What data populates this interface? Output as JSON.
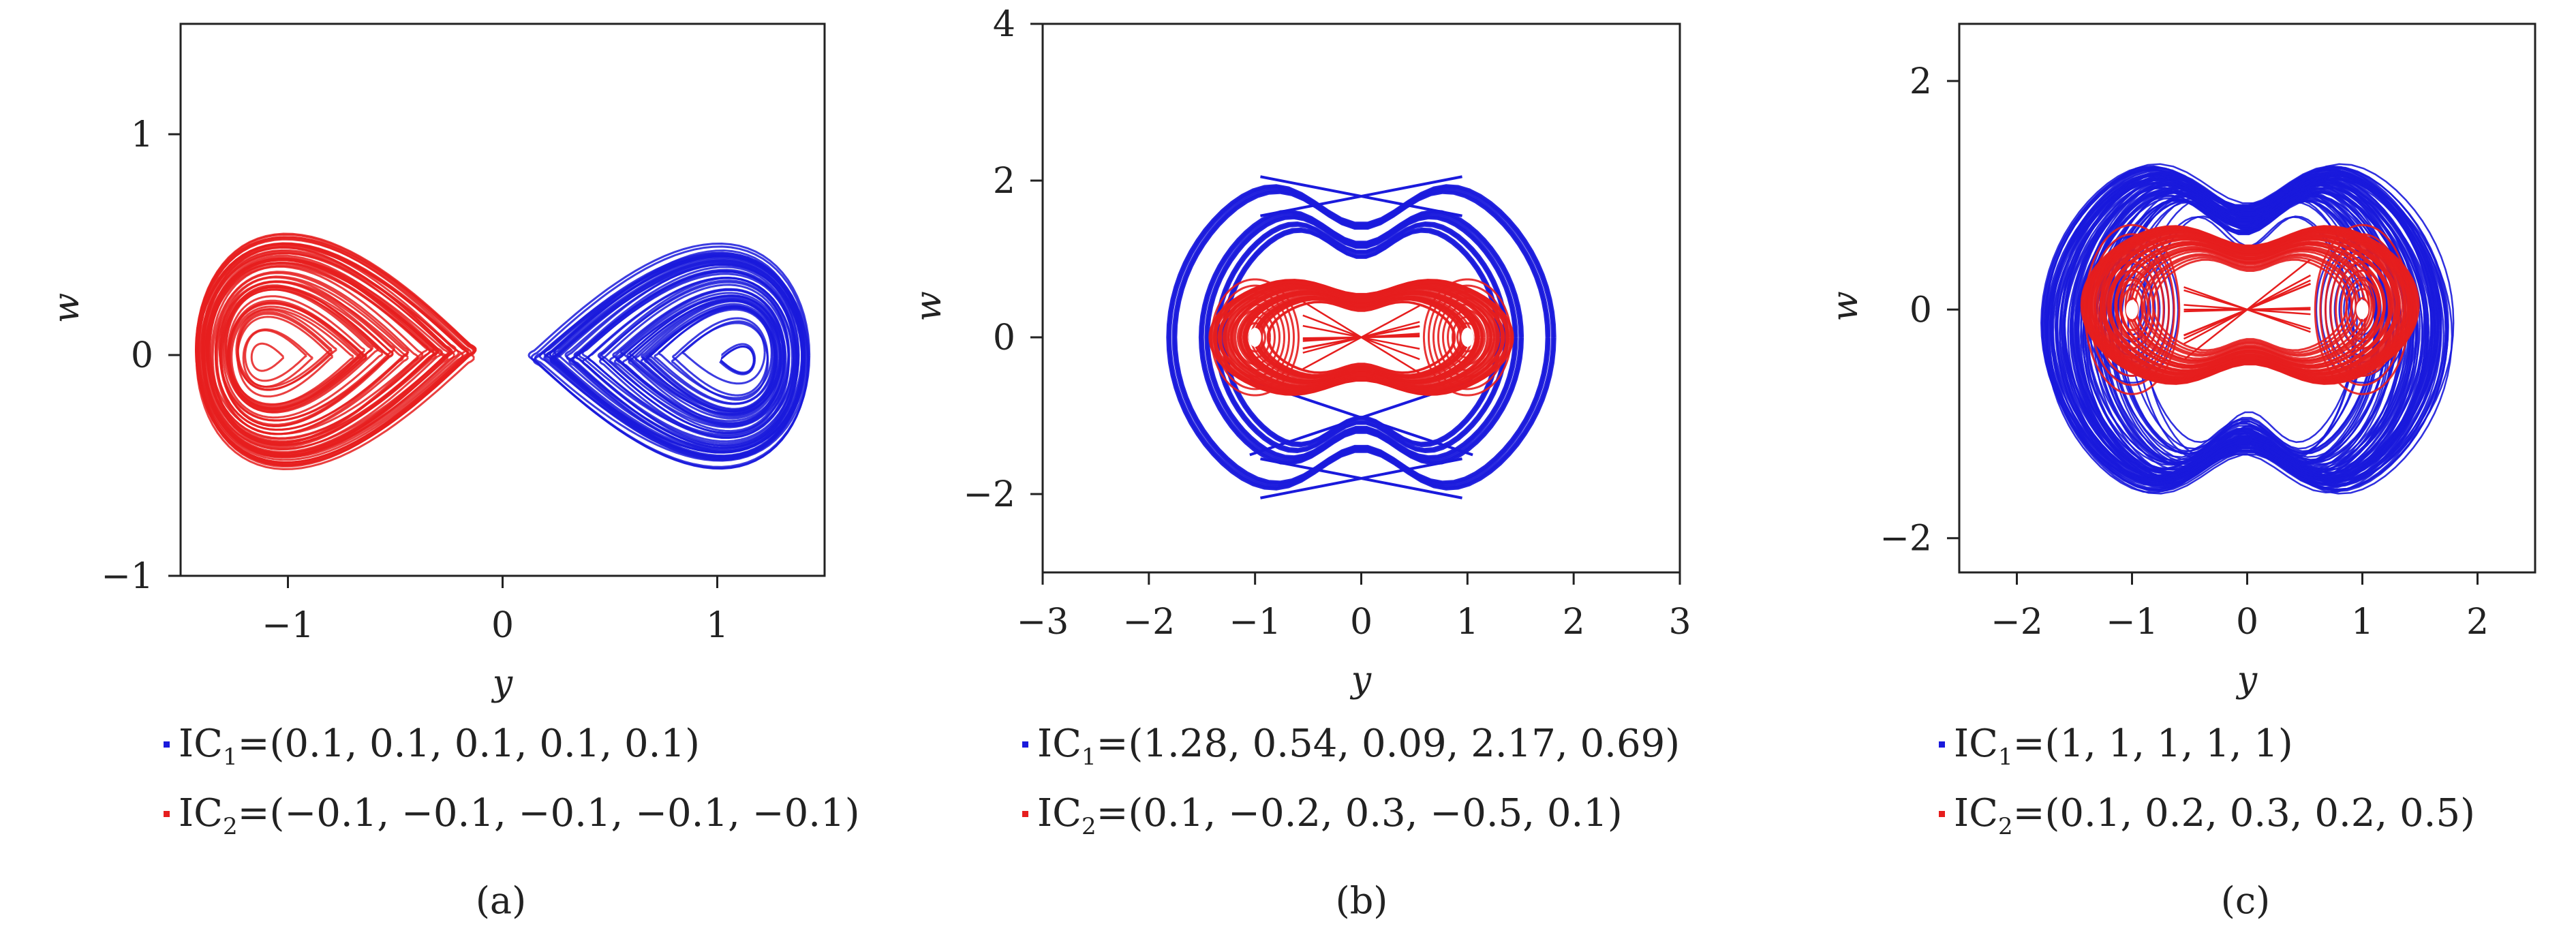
{
  "colors": {
    "series1": "#1a1adc",
    "series2": "#e61e1e",
    "axis": "#222222"
  },
  "chart_data": [
    {
      "type": "line",
      "caption": "(a)",
      "xlabel": "y",
      "ylabel": "w",
      "xlim": [
        -1.5,
        1.5
      ],
      "ylim": [
        -1,
        1.5
      ],
      "xticks": [
        -1,
        0,
        1
      ],
      "yticks": [
        -1,
        0,
        1
      ],
      "grid": false,
      "legend": "below",
      "series": [
        {
          "name": "IC",
          "subscript": "1",
          "label_suffix": "=(0.1, 0.1, 0.1, 0.1, 0.1)",
          "color": "#1a1adc",
          "attractor": {
            "kind": "lobe",
            "centers": [
              [
                1.0,
                0.0
              ]
            ],
            "x_extent": [
              0.12,
              1.43
            ],
            "y_extent": [
              -0.7,
              0.68
            ]
          }
        },
        {
          "name": "IC",
          "subscript": "2",
          "label_suffix": "=(−0.1, −0.1, −0.1, −0.1, −0.1)",
          "color": "#e61e1e",
          "attractor": {
            "kind": "lobe",
            "centers": [
              [
                -1.0,
                0.0
              ]
            ],
            "x_extent": [
              -1.43,
              -0.12
            ],
            "y_extent": [
              -0.7,
              0.72
            ]
          }
        }
      ]
    },
    {
      "type": "line",
      "caption": "(b)",
      "xlabel": "y",
      "ylabel": "w",
      "xlim": [
        -3,
        3
      ],
      "ylim": [
        -3,
        4
      ],
      "xticks": [
        -3,
        -2,
        -1,
        0,
        1,
        2,
        3
      ],
      "yticks": [
        -2,
        0,
        2,
        4
      ],
      "grid": false,
      "legend": "below",
      "series": [
        {
          "name": "IC",
          "subscript": "1",
          "label_suffix": "=(1.28, 0.54, 0.09, 2.17, 0.69)",
          "color": "#1a1adc",
          "attractor": {
            "kind": "nested-loops",
            "x_extent": [
              -1.8,
              1.8
            ],
            "y_extent": [
              -2.3,
              2.3
            ]
          }
        },
        {
          "name": "IC",
          "subscript": "2",
          "label_suffix": "=(0.1, −0.2, 0.3, −0.5, 0.1)",
          "color": "#e61e1e",
          "attractor": {
            "kind": "double-scroll",
            "centers": [
              [
                -1.0,
                0.0
              ],
              [
                1.0,
                0.0
              ]
            ],
            "x_extent": [
              -1.45,
              1.45
            ],
            "y_extent": [
              -0.9,
              0.9
            ]
          }
        }
      ]
    },
    {
      "type": "line",
      "caption": "(c)",
      "xlabel": "y",
      "ylabel": "w",
      "xlim": [
        -2.5,
        2.5
      ],
      "ylim": [
        -2.3,
        2.5
      ],
      "xticks": [
        -2,
        -1,
        0,
        1,
        2
      ],
      "yticks": [
        -2,
        0,
        2
      ],
      "grid": false,
      "legend": "below",
      "series": [
        {
          "name": "IC",
          "subscript": "1",
          "label_suffix": "=(1, 1, 1, 1, 1)",
          "color": "#1a1adc",
          "attractor": {
            "kind": "dense-band",
            "x_extent": [
              -1.8,
              1.75
            ],
            "y_extent": [
              -1.85,
              1.5
            ]
          }
        },
        {
          "name": "IC",
          "subscript": "2",
          "label_suffix": "=(0.1, 0.2, 0.3, 0.2, 0.5)",
          "color": "#e61e1e",
          "attractor": {
            "kind": "double-scroll",
            "centers": [
              [
                -1.0,
                0.0
              ],
              [
                1.0,
                0.0
              ]
            ],
            "x_extent": [
              -1.45,
              1.5
            ],
            "y_extent": [
              -0.8,
              0.88
            ]
          }
        }
      ]
    }
  ]
}
